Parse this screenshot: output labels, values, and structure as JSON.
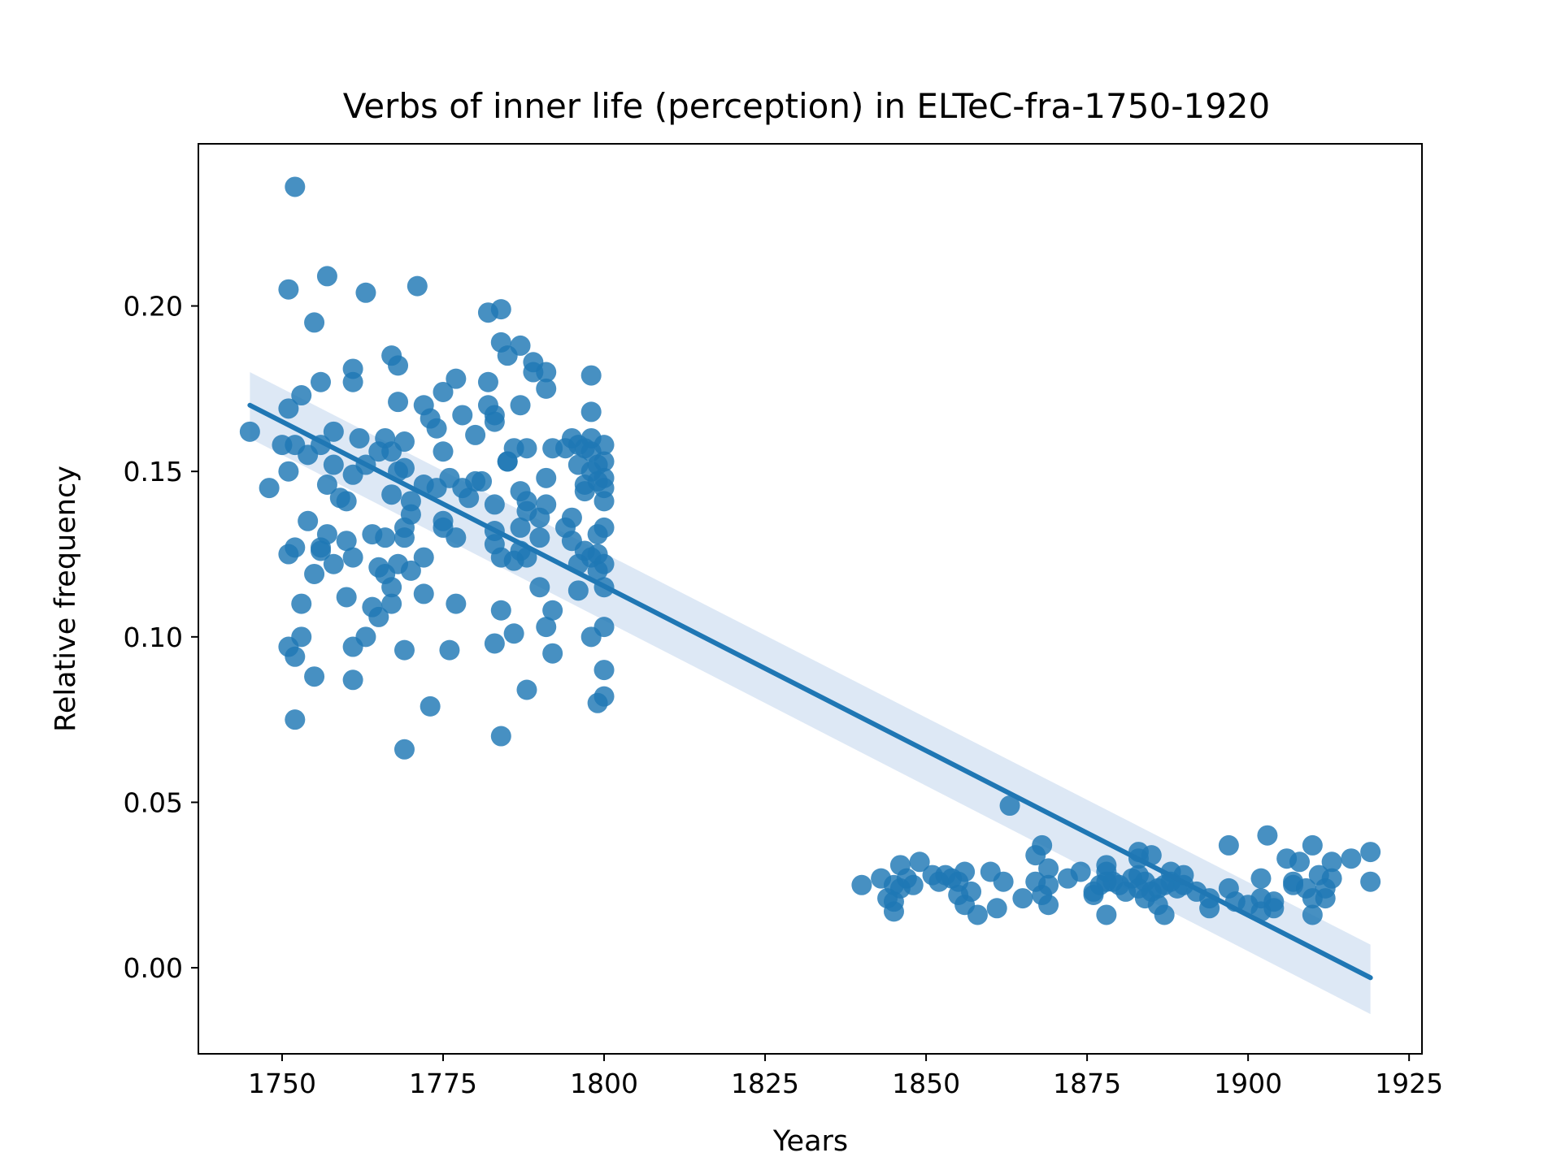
{
  "chart_data": {
    "type": "scatter",
    "title": "Verbs of inner life (perception) in ELTeC-fra-1750-1920",
    "xlabel": "Years",
    "ylabel": "Relative frequency",
    "xlim": [
      1737,
      1927
    ],
    "ylim": [
      -0.026,
      0.249
    ],
    "xticks": [
      "1750",
      "1775",
      "1800",
      "1825",
      "1850",
      "1875",
      "1900",
      "1925"
    ],
    "yticks": [
      "0.00",
      "0.05",
      "0.10",
      "0.15",
      "0.20"
    ],
    "grid": false,
    "marker_color": "#1f77b4",
    "regression": {
      "x": [
        1745,
        1919
      ],
      "y": [
        0.17,
        -0.003
      ],
      "ci_lower": [
        0.16,
        -0.014
      ],
      "ci_upper": [
        0.18,
        0.007
      ],
      "line_color": "#1f77b4",
      "band_color": "#c6d9ee"
    },
    "points": [
      [
        1745,
        0.162
      ],
      [
        1748,
        0.145
      ],
      [
        1750,
        0.158
      ],
      [
        1751,
        0.205
      ],
      [
        1751,
        0.169
      ],
      [
        1751,
        0.15
      ],
      [
        1751,
        0.125
      ],
      [
        1751,
        0.097
      ],
      [
        1752,
        0.236
      ],
      [
        1752,
        0.158
      ],
      [
        1752,
        0.127
      ],
      [
        1752,
        0.094
      ],
      [
        1752,
        0.075
      ],
      [
        1753,
        0.173
      ],
      [
        1753,
        0.11
      ],
      [
        1753,
        0.1
      ],
      [
        1754,
        0.155
      ],
      [
        1754,
        0.135
      ],
      [
        1755,
        0.195
      ],
      [
        1755,
        0.119
      ],
      [
        1755,
        0.088
      ],
      [
        1756,
        0.177
      ],
      [
        1756,
        0.158
      ],
      [
        1756,
        0.127
      ],
      [
        1756,
        0.126
      ],
      [
        1757,
        0.209
      ],
      [
        1757,
        0.146
      ],
      [
        1757,
        0.131
      ],
      [
        1758,
        0.162
      ],
      [
        1758,
        0.152
      ],
      [
        1758,
        0.122
      ],
      [
        1759,
        0.142
      ],
      [
        1760,
        0.141
      ],
      [
        1760,
        0.129
      ],
      [
        1760,
        0.112
      ],
      [
        1761,
        0.181
      ],
      [
        1761,
        0.177
      ],
      [
        1761,
        0.149
      ],
      [
        1761,
        0.124
      ],
      [
        1761,
        0.097
      ],
      [
        1761,
        0.087
      ],
      [
        1762,
        0.16
      ],
      [
        1763,
        0.204
      ],
      [
        1763,
        0.152
      ],
      [
        1763,
        0.1
      ],
      [
        1764,
        0.131
      ],
      [
        1764,
        0.109
      ],
      [
        1765,
        0.156
      ],
      [
        1765,
        0.121
      ],
      [
        1765,
        0.106
      ],
      [
        1766,
        0.16
      ],
      [
        1766,
        0.13
      ],
      [
        1766,
        0.119
      ],
      [
        1767,
        0.185
      ],
      [
        1767,
        0.156
      ],
      [
        1767,
        0.143
      ],
      [
        1767,
        0.115
      ],
      [
        1767,
        0.11
      ],
      [
        1768,
        0.182
      ],
      [
        1768,
        0.171
      ],
      [
        1768,
        0.15
      ],
      [
        1768,
        0.122
      ],
      [
        1769,
        0.159
      ],
      [
        1769,
        0.151
      ],
      [
        1769,
        0.133
      ],
      [
        1769,
        0.13
      ],
      [
        1769,
        0.096
      ],
      [
        1769,
        0.066
      ],
      [
        1770,
        0.141
      ],
      [
        1770,
        0.137
      ],
      [
        1770,
        0.12
      ],
      [
        1771,
        0.206
      ],
      [
        1772,
        0.17
      ],
      [
        1772,
        0.146
      ],
      [
        1772,
        0.124
      ],
      [
        1772,
        0.113
      ],
      [
        1773,
        0.166
      ],
      [
        1773,
        0.079
      ],
      [
        1774,
        0.163
      ],
      [
        1774,
        0.145
      ],
      [
        1775,
        0.174
      ],
      [
        1775,
        0.156
      ],
      [
        1775,
        0.135
      ],
      [
        1775,
        0.133
      ],
      [
        1776,
        0.148
      ],
      [
        1776,
        0.096
      ],
      [
        1777,
        0.178
      ],
      [
        1777,
        0.13
      ],
      [
        1777,
        0.11
      ],
      [
        1778,
        0.167
      ],
      [
        1778,
        0.145
      ],
      [
        1779,
        0.142
      ],
      [
        1780,
        0.161
      ],
      [
        1780,
        0.147
      ],
      [
        1781,
        0.147
      ],
      [
        1782,
        0.198
      ],
      [
        1782,
        0.177
      ],
      [
        1782,
        0.17
      ],
      [
        1783,
        0.167
      ],
      [
        1783,
        0.165
      ],
      [
        1783,
        0.14
      ],
      [
        1783,
        0.132
      ],
      [
        1783,
        0.128
      ],
      [
        1783,
        0.098
      ],
      [
        1784,
        0.199
      ],
      [
        1784,
        0.189
      ],
      [
        1784,
        0.124
      ],
      [
        1784,
        0.108
      ],
      [
        1784,
        0.07
      ],
      [
        1785,
        0.185
      ],
      [
        1785,
        0.153
      ],
      [
        1785,
        0.153
      ],
      [
        1786,
        0.157
      ],
      [
        1786,
        0.123
      ],
      [
        1786,
        0.101
      ],
      [
        1787,
        0.188
      ],
      [
        1787,
        0.17
      ],
      [
        1787,
        0.144
      ],
      [
        1787,
        0.133
      ],
      [
        1787,
        0.126
      ],
      [
        1788,
        0.157
      ],
      [
        1788,
        0.141
      ],
      [
        1788,
        0.138
      ],
      [
        1788,
        0.124
      ],
      [
        1788,
        0.084
      ],
      [
        1789,
        0.183
      ],
      [
        1789,
        0.18
      ],
      [
        1790,
        0.136
      ],
      [
        1790,
        0.13
      ],
      [
        1790,
        0.115
      ],
      [
        1791,
        0.18
      ],
      [
        1791,
        0.175
      ],
      [
        1791,
        0.148
      ],
      [
        1791,
        0.14
      ],
      [
        1791,
        0.103
      ],
      [
        1792,
        0.157
      ],
      [
        1792,
        0.108
      ],
      [
        1792,
        0.095
      ],
      [
        1794,
        0.157
      ],
      [
        1794,
        0.133
      ],
      [
        1795,
        0.16
      ],
      [
        1795,
        0.136
      ],
      [
        1795,
        0.129
      ],
      [
        1796,
        0.158
      ],
      [
        1796,
        0.152
      ],
      [
        1796,
        0.122
      ],
      [
        1796,
        0.114
      ],
      [
        1797,
        0.157
      ],
      [
        1797,
        0.146
      ],
      [
        1797,
        0.144
      ],
      [
        1797,
        0.126
      ],
      [
        1798,
        0.179
      ],
      [
        1798,
        0.168
      ],
      [
        1798,
        0.16
      ],
      [
        1798,
        0.156
      ],
      [
        1798,
        0.15
      ],
      [
        1798,
        0.124
      ],
      [
        1798,
        0.1
      ],
      [
        1799,
        0.152
      ],
      [
        1799,
        0.147
      ],
      [
        1799,
        0.131
      ],
      [
        1799,
        0.125
      ],
      [
        1799,
        0.12
      ],
      [
        1799,
        0.08
      ],
      [
        1800,
        0.158
      ],
      [
        1800,
        0.153
      ],
      [
        1800,
        0.148
      ],
      [
        1800,
        0.145
      ],
      [
        1800,
        0.141
      ],
      [
        1800,
        0.133
      ],
      [
        1800,
        0.122
      ],
      [
        1800,
        0.115
      ],
      [
        1800,
        0.103
      ],
      [
        1800,
        0.09
      ],
      [
        1800,
        0.082
      ],
      [
        1840,
        0.025
      ],
      [
        1843,
        0.027
      ],
      [
        1844,
        0.021
      ],
      [
        1845,
        0.025
      ],
      [
        1845,
        0.02
      ],
      [
        1845,
        0.017
      ],
      [
        1846,
        0.031
      ],
      [
        1846,
        0.024
      ],
      [
        1847,
        0.027
      ],
      [
        1848,
        0.025
      ],
      [
        1849,
        0.032
      ],
      [
        1851,
        0.028
      ],
      [
        1852,
        0.026
      ],
      [
        1853,
        0.028
      ],
      [
        1854,
        0.027
      ],
      [
        1855,
        0.026
      ],
      [
        1855,
        0.022
      ],
      [
        1856,
        0.029
      ],
      [
        1856,
        0.019
      ],
      [
        1857,
        0.023
      ],
      [
        1858,
        0.016
      ],
      [
        1860,
        0.029
      ],
      [
        1861,
        0.018
      ],
      [
        1862,
        0.026
      ],
      [
        1863,
        0.049
      ],
      [
        1865,
        0.021
      ],
      [
        1867,
        0.034
      ],
      [
        1867,
        0.026
      ],
      [
        1868,
        0.037
      ],
      [
        1868,
        0.022
      ],
      [
        1869,
        0.03
      ],
      [
        1869,
        0.025
      ],
      [
        1869,
        0.019
      ],
      [
        1872,
        0.027
      ],
      [
        1874,
        0.029
      ],
      [
        1876,
        0.023
      ],
      [
        1876,
        0.022
      ],
      [
        1877,
        0.025
      ],
      [
        1878,
        0.031
      ],
      [
        1878,
        0.029
      ],
      [
        1878,
        0.026
      ],
      [
        1878,
        0.016
      ],
      [
        1879,
        0.026
      ],
      [
        1880,
        0.025
      ],
      [
        1881,
        0.023
      ],
      [
        1882,
        0.027
      ],
      [
        1883,
        0.035
      ],
      [
        1883,
        0.033
      ],
      [
        1883,
        0.028
      ],
      [
        1883,
        0.024
      ],
      [
        1884,
        0.026
      ],
      [
        1884,
        0.021
      ],
      [
        1885,
        0.034
      ],
      [
        1885,
        0.023
      ],
      [
        1886,
        0.024
      ],
      [
        1886,
        0.019
      ],
      [
        1887,
        0.025
      ],
      [
        1887,
        0.016
      ],
      [
        1888,
        0.029
      ],
      [
        1888,
        0.026
      ],
      [
        1889,
        0.024
      ],
      [
        1890,
        0.028
      ],
      [
        1890,
        0.025
      ],
      [
        1892,
        0.023
      ],
      [
        1894,
        0.021
      ],
      [
        1894,
        0.018
      ],
      [
        1897,
        0.037
      ],
      [
        1897,
        0.024
      ],
      [
        1898,
        0.02
      ],
      [
        1900,
        0.019
      ],
      [
        1902,
        0.027
      ],
      [
        1902,
        0.021
      ],
      [
        1902,
        0.017
      ],
      [
        1903,
        0.04
      ],
      [
        1904,
        0.02
      ],
      [
        1904,
        0.018
      ],
      [
        1906,
        0.033
      ],
      [
        1907,
        0.026
      ],
      [
        1907,
        0.025
      ],
      [
        1908,
        0.032
      ],
      [
        1909,
        0.024
      ],
      [
        1910,
        0.037
      ],
      [
        1910,
        0.021
      ],
      [
        1910,
        0.016
      ],
      [
        1911,
        0.028
      ],
      [
        1912,
        0.024
      ],
      [
        1912,
        0.021
      ],
      [
        1913,
        0.032
      ],
      [
        1913,
        0.027
      ],
      [
        1916,
        0.033
      ],
      [
        1919,
        0.035
      ],
      [
        1919,
        0.026
      ]
    ]
  }
}
